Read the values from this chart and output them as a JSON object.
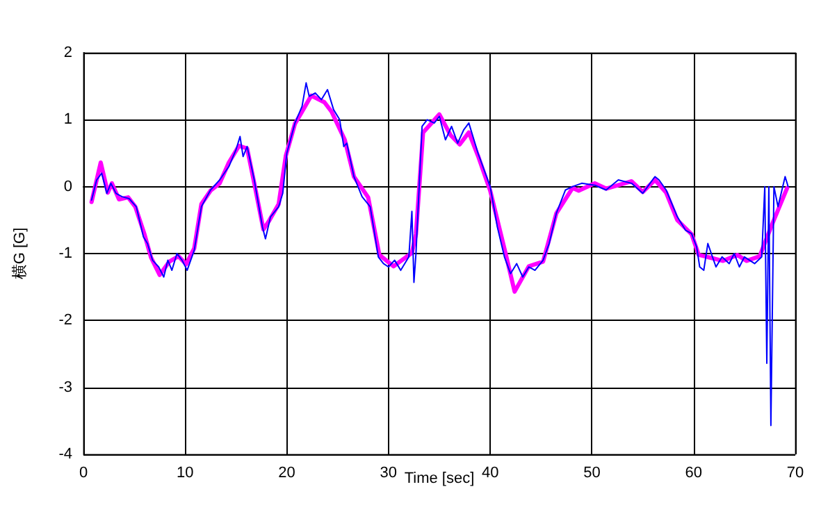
{
  "chart_data": {
    "type": "line",
    "xlabel": "Time [sec]",
    "ylabel": "横G [G]",
    "xlim": [
      0,
      70
    ],
    "xticks": [
      0,
      10,
      20,
      30,
      40,
      50,
      60,
      70
    ],
    "ylim": [
      -4,
      2
    ],
    "yticks": [
      -4,
      -3,
      -2,
      -1,
      0,
      1,
      2
    ],
    "grid": true,
    "marker": "none",
    "line_style": "solid",
    "series": [
      {
        "color": "#ff00ff",
        "x": [
          0.8,
          1.7,
          2.4,
          2.8,
          3.5,
          4.4,
          5.1,
          6.0,
          6.65,
          7.5,
          8.45,
          9.35,
          10.1,
          10.9,
          11.6,
          12.5,
          13.4,
          14.3,
          15.3,
          16.1,
          16.8,
          17.7,
          18.3,
          19.2,
          19.9,
          20.8,
          21.5,
          22.4,
          23.7,
          24.4,
          25.7,
          26.6,
          28.0,
          29.1,
          30.5,
          32.3,
          32.7,
          33.4,
          35.0,
          36.1,
          37.0,
          37.9,
          38.8,
          40.0,
          41.5,
          42.4,
          43.8,
          45.2,
          46.5,
          48.1,
          48.7,
          50.3,
          51.4,
          53.9,
          55.0,
          56.2,
          57.3,
          58.4,
          59.8,
          60.5,
          61.6,
          62.9,
          64.3,
          65.2,
          66.5,
          67.7,
          69.2
        ],
        "values": [
          -0.23,
          0.36,
          -0.09,
          0.05,
          -0.19,
          -0.16,
          -0.3,
          -0.71,
          -1.06,
          -1.32,
          -1.12,
          -1.04,
          -1.16,
          -0.92,
          -0.26,
          -0.06,
          0.05,
          0.36,
          0.61,
          0.57,
          0.05,
          -0.64,
          -0.5,
          -0.26,
          0.46,
          0.94,
          1.12,
          1.36,
          1.26,
          1.12,
          0.7,
          0.15,
          -0.16,
          -1.02,
          -1.19,
          -0.99,
          -0.71,
          0.81,
          1.08,
          0.77,
          0.63,
          0.81,
          0.46,
          -0.06,
          -0.99,
          -1.57,
          -1.19,
          -1.12,
          -0.4,
          -0.02,
          -0.06,
          0.05,
          -0.03,
          0.08,
          -0.08,
          0.1,
          -0.09,
          -0.5,
          -0.71,
          -1.02,
          -1.06,
          -1.11,
          -1.02,
          -1.11,
          -1.04,
          -0.57,
          -0.02
        ]
      },
      {
        "color": "#0000ff",
        "x": [
          0.8,
          1.3,
          1.8,
          2.3,
          2.7,
          3.2,
          3.8,
          4.5,
          5.2,
          5.9,
          6.3,
          6.8,
          7.4,
          7.9,
          8.3,
          8.7,
          9.2,
          9.7,
          10.2,
          10.9,
          11.6,
          12.5,
          13.4,
          14.3,
          15.0,
          15.4,
          15.7,
          16.1,
          16.8,
          17.6,
          17.9,
          18.4,
          19.2,
          19.6,
          20.0,
          20.8,
          21.5,
          21.9,
          22.2,
          22.8,
          23.4,
          24.0,
          24.6,
          25.2,
          25.6,
          25.9,
          26.6,
          27.4,
          28.2,
          29.0,
          29.5,
          30.0,
          30.6,
          31.2,
          32.0,
          32.3,
          32.5,
          32.7,
          33.3,
          33.8,
          34.5,
          35.0,
          35.6,
          36.2,
          36.8,
          37.4,
          37.9,
          38.8,
          40.0,
          40.7,
          41.4,
          42.0,
          42.6,
          43.2,
          43.8,
          44.4,
          45.2,
          45.8,
          46.5,
          47.4,
          48.1,
          49.0,
          50.3,
          51.4,
          52.6,
          53.9,
          55.0,
          56.2,
          56.6,
          57.3,
          58.4,
          59.2,
          59.8,
          60.3,
          60.6,
          61.0,
          61.4,
          62.2,
          62.8,
          63.5,
          64.0,
          64.5,
          65.0,
          65.5,
          66.0,
          66.7,
          67.0,
          67.2,
          67.4,
          67.6,
          67.9,
          68.3,
          69.0,
          69.3
        ],
        "values": [
          -0.2,
          0.1,
          0.2,
          -0.1,
          0.05,
          -0.1,
          -0.15,
          -0.18,
          -0.3,
          -0.75,
          -0.85,
          -1.1,
          -1.2,
          -1.35,
          -1.1,
          -1.25,
          -1.0,
          -1.1,
          -1.25,
          -0.95,
          -0.3,
          -0.05,
          0.1,
          0.3,
          0.55,
          0.75,
          0.45,
          0.6,
          0.1,
          -0.6,
          -0.78,
          -0.45,
          -0.3,
          -0.1,
          0.5,
          0.95,
          1.2,
          1.55,
          1.35,
          1.4,
          1.3,
          1.45,
          1.15,
          1.0,
          0.6,
          0.65,
          0.15,
          -0.15,
          -0.3,
          -1.05,
          -1.15,
          -1.2,
          -1.1,
          -1.25,
          -1.05,
          -0.37,
          -1.43,
          -1.0,
          0.9,
          1.0,
          0.95,
          1.05,
          0.7,
          0.9,
          0.65,
          0.85,
          0.95,
          0.5,
          0.0,
          -0.6,
          -1.05,
          -1.3,
          -1.15,
          -1.35,
          -1.2,
          -1.25,
          -1.1,
          -0.85,
          -0.4,
          -0.05,
          0.0,
          0.05,
          0.02,
          -0.05,
          0.1,
          0.05,
          -0.1,
          0.15,
          0.1,
          -0.05,
          -0.45,
          -0.65,
          -0.7,
          -0.9,
          -1.2,
          -1.25,
          -0.85,
          -1.2,
          -1.05,
          -1.15,
          -1.0,
          -1.2,
          -1.05,
          -1.1,
          -1.15,
          -1.05,
          0.0,
          -2.64,
          0.0,
          -3.57,
          0.0,
          -0.3,
          0.15,
          0.0
        ]
      }
    ]
  }
}
